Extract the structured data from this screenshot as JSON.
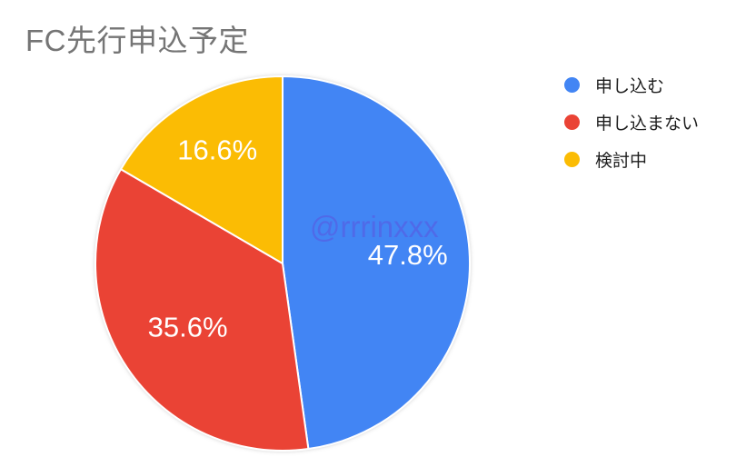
{
  "title": {
    "text": "FC先行申込予定",
    "color": "#757575"
  },
  "watermark": {
    "text": "@rrrinxxx"
  },
  "chart_data": {
    "type": "pie",
    "title": "FC先行申込予定",
    "categories": [
      "申し込む",
      "申し込まない",
      "検討中"
    ],
    "values": [
      47.8,
      35.6,
      16.6
    ],
    "slice_labels": [
      "47.8%",
      "35.6%",
      "16.6%"
    ],
    "colors": [
      "#4285F4",
      "#EA4335",
      "#FBBC04"
    ],
    "start_angle_deg": 0,
    "direction": "clockwise",
    "legend_position": "right",
    "slice_border_color": "#ffffff",
    "slice_label_color": "#ffffff",
    "background": "#ffffff"
  },
  "legend": {
    "items": [
      {
        "label": "申し込む",
        "color": "#4285F4"
      },
      {
        "label": "申し込まない",
        "color": "#EA4335"
      },
      {
        "label": "検討中",
        "color": "#FBBC04"
      }
    ]
  }
}
